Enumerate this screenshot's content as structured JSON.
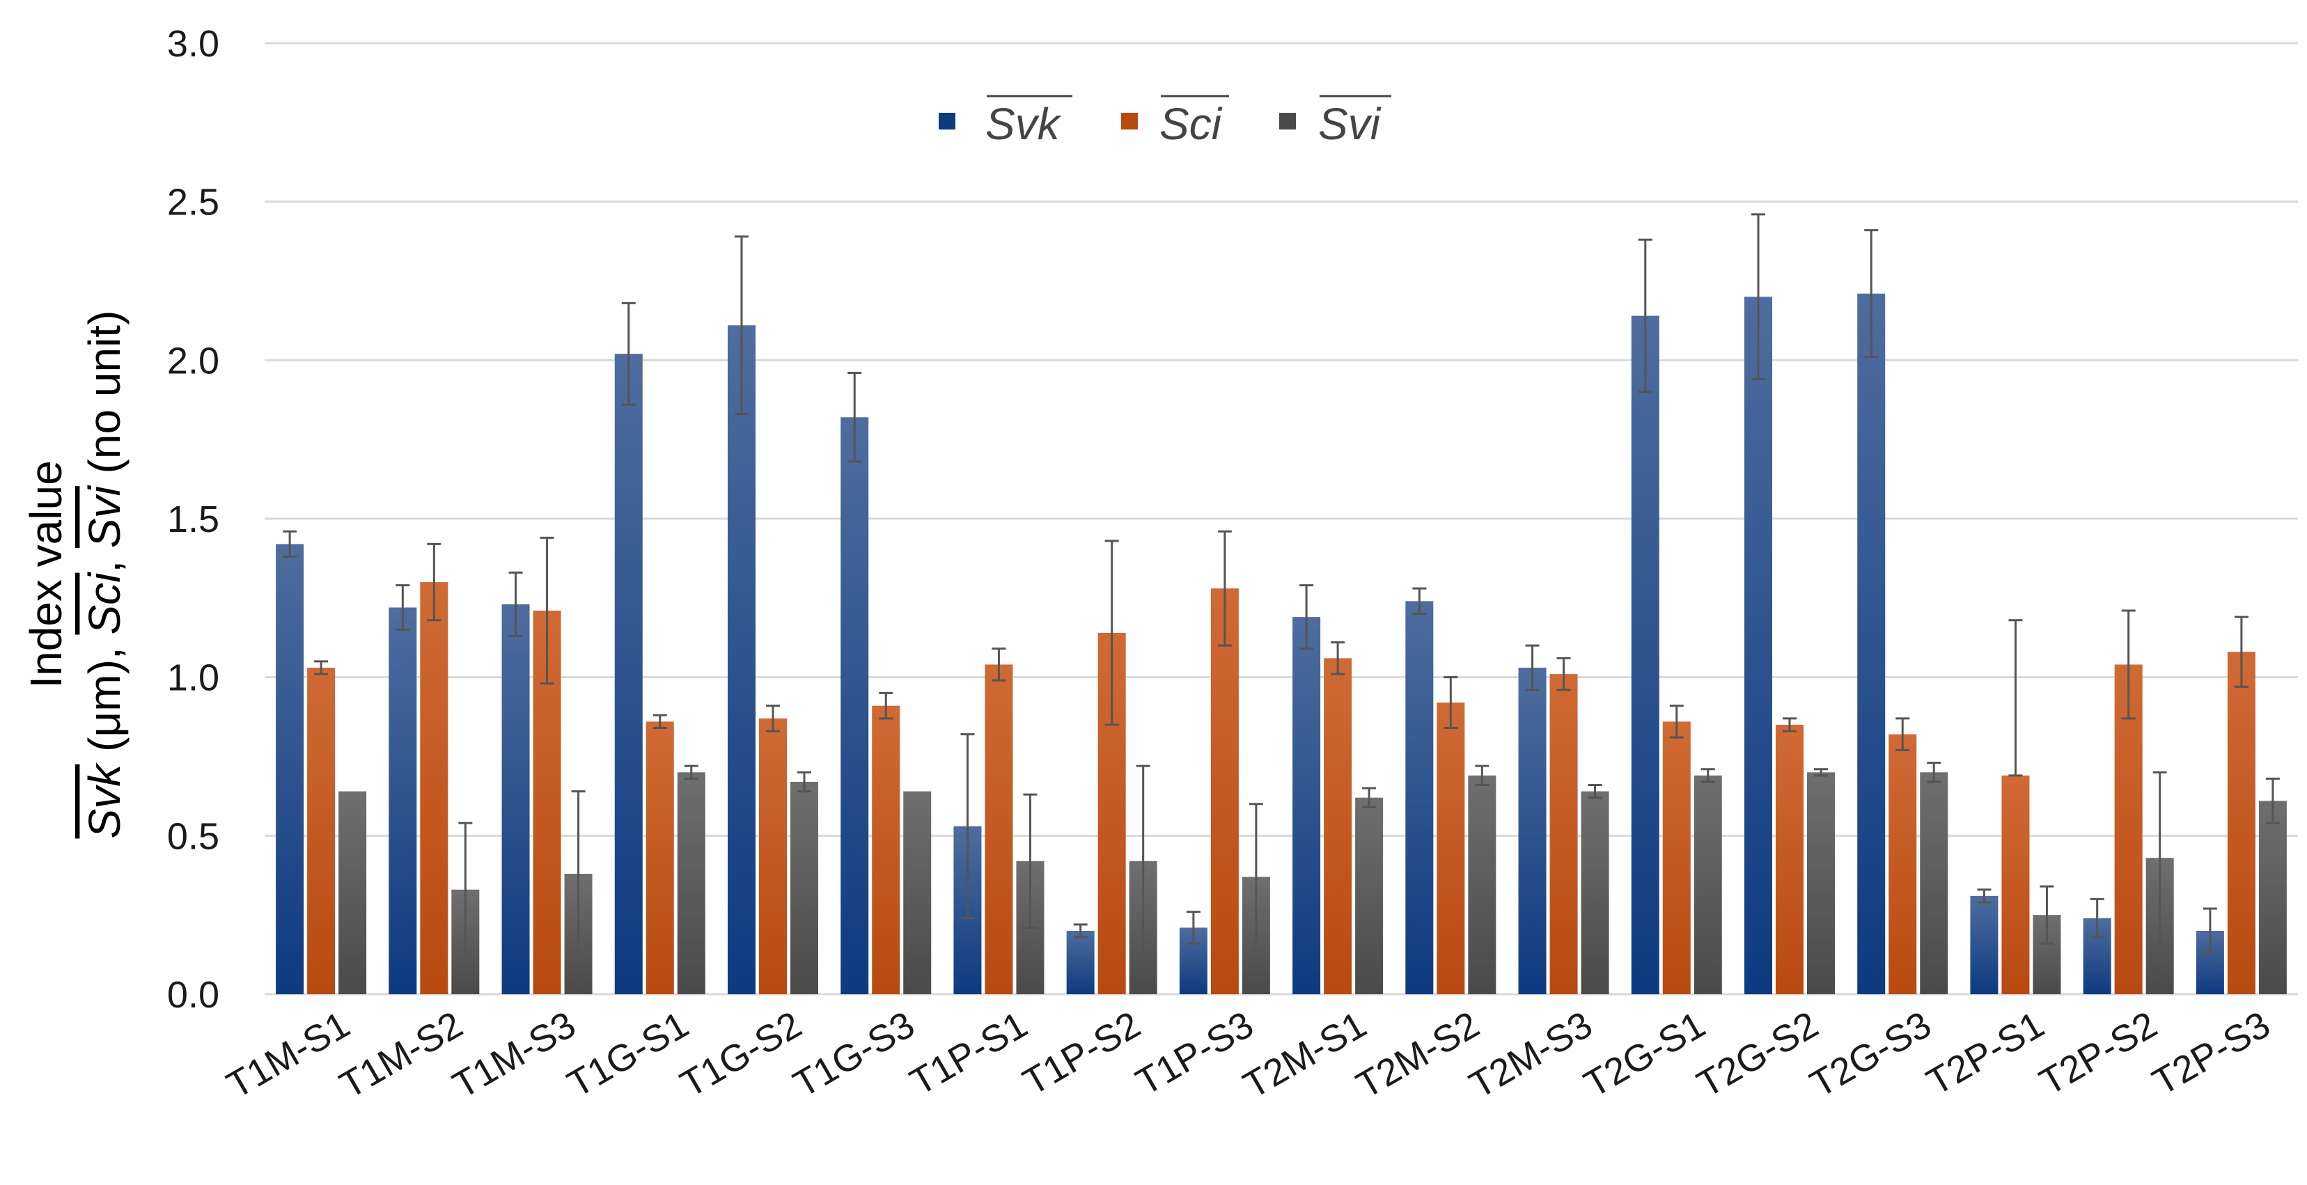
{
  "chart_data": {
    "type": "bar",
    "title": "",
    "xlabel": "",
    "ylabel": {
      "line1": "Index value",
      "line2_parts": [
        "Svk",
        " (μm), ",
        "Sci",
        ", ",
        "Svi",
        " (no unit)"
      ]
    },
    "ylim": [
      0,
      3.0
    ],
    "yticks": [
      "0.0",
      "0.5",
      "1.0",
      "1.5",
      "2.0",
      "2.5",
      "3.0"
    ],
    "ytick_values": [
      0,
      0.5,
      1.0,
      1.5,
      2.0,
      2.5,
      3.0
    ],
    "grid": true,
    "legend_position": "top-center",
    "categories": [
      "T1M-S1",
      "T1M-S2",
      "T1M-S3",
      "T1G-S1",
      "T1G-S2",
      "T1G-S3",
      "T1P-S1",
      "T1P-S2",
      "T1P-S3",
      "T2M-S1",
      "T2M-S2",
      "T2M-S3",
      "T2G-S1",
      "T2G-S2",
      "T2G-S3",
      "T2P-S1",
      "T2P-S2",
      "T2P-S3"
    ],
    "series": [
      {
        "name": "Svk",
        "color_top": "#4f6d9e",
        "color_bottom": "#0d3a80",
        "values": [
          1.42,
          1.22,
          1.23,
          2.02,
          2.11,
          1.82,
          0.53,
          0.2,
          0.21,
          1.19,
          1.24,
          1.03,
          2.14,
          2.2,
          2.21,
          0.31,
          0.24,
          0.2
        ],
        "errors": [
          0.04,
          0.07,
          0.1,
          0.16,
          0.28,
          0.14,
          0.29,
          0.02,
          0.05,
          0.1,
          0.04,
          0.07,
          0.24,
          0.26,
          0.2,
          0.02,
          0.06,
          0.07
        ]
      },
      {
        "name": "Sci",
        "color_top": "#d06a35",
        "color_bottom": "#b84a10",
        "values": [
          1.03,
          1.3,
          1.21,
          0.86,
          0.87,
          0.91,
          1.04,
          1.14,
          1.28,
          1.06,
          0.92,
          1.01,
          0.86,
          0.85,
          0.82,
          0.69,
          1.04,
          1.08
        ],
        "errors": [
          0.02,
          0.12,
          0.23,
          0.02,
          0.04,
          0.04,
          0.05,
          0.29,
          0.18,
          0.05,
          0.08,
          0.05,
          0.05,
          0.02,
          0.05,
          0.49,
          0.17,
          0.11
        ],
        "errors_lower": [
          0.02,
          0.12,
          0.23,
          0.02,
          0.04,
          0.04,
          0.05,
          0.29,
          0.18,
          0.05,
          0.08,
          0.05,
          0.05,
          0.02,
          0.05,
          0.0,
          0.17,
          0.11
        ]
      },
      {
        "name": "Svi",
        "color_top": "#6f6f6f",
        "color_bottom": "#4a4a4a",
        "values": [
          0.64,
          0.33,
          0.38,
          0.7,
          0.67,
          0.64,
          0.42,
          0.42,
          0.37,
          0.62,
          0.69,
          0.64,
          0.69,
          0.7,
          0.7,
          0.25,
          0.43,
          0.61
        ],
        "errors": [
          0.0,
          0.21,
          0.26,
          0.02,
          0.03,
          0.0,
          0.21,
          0.3,
          0.23,
          0.03,
          0.03,
          0.02,
          0.02,
          0.01,
          0.03,
          0.09,
          0.27,
          0.07
        ]
      }
    ]
  }
}
